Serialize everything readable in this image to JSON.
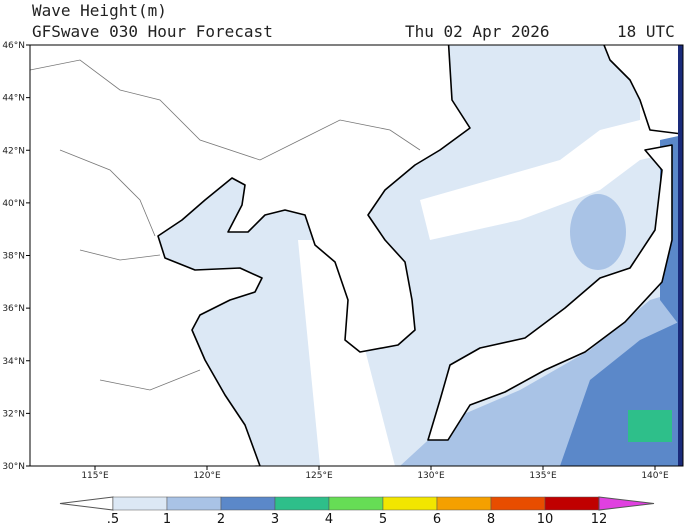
{
  "header": {
    "title": "Wave Height(m)",
    "subtitle": "GFSwave 030 Hour Forecast",
    "date": "Thu 02 Apr 2026",
    "time": "18 UTC"
  },
  "map": {
    "lat_labels": [
      "46°N",
      "44°N",
      "42°N",
      "40°N",
      "38°N",
      "36°N",
      "34°N",
      "32°N",
      "30°N"
    ],
    "lon_labels": [
      "115°E",
      "120°E",
      "125°E",
      "130°E",
      "135°E",
      "140°E"
    ]
  },
  "colorbar": {
    "labels": [
      ".5",
      "1",
      "2",
      "3",
      "4",
      "5",
      "6",
      "8",
      "10",
      "12"
    ],
    "colors": [
      "#ffffff",
      "#dce8f5",
      "#a9c3e6",
      "#5b88c9",
      "#2ebf8a",
      "#66dd55",
      "#f2e600",
      "#f5a000",
      "#e84d00",
      "#c00000",
      "#e040e0"
    ]
  }
}
